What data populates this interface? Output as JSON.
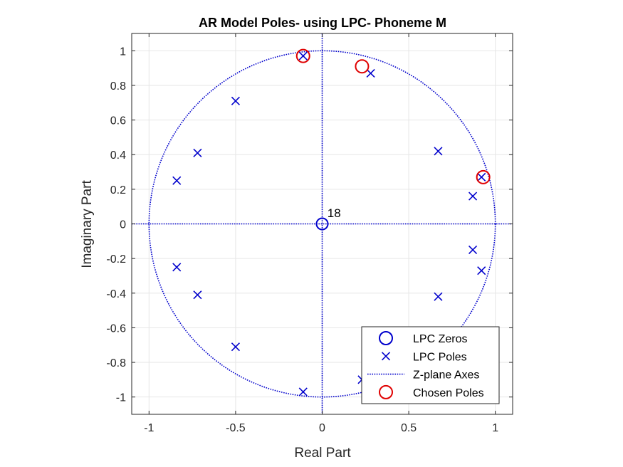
{
  "chart_data": {
    "type": "scatter",
    "title": "AR Model Poles- using LPC- Phoneme M",
    "xlabel": "Real Part",
    "ylabel": "Imaginary Part",
    "xlim": [
      -1.1,
      1.1
    ],
    "ylim": [
      -1.1,
      1.1
    ],
    "grid": true,
    "legend_position": "bottom-right",
    "x_ticks": [
      -1,
      -0.5,
      0,
      0.5,
      1
    ],
    "x_tick_labels": [
      "-1",
      "-0.5",
      "0",
      "0.5",
      "1"
    ],
    "y_ticks": [
      1,
      0.8,
      0.6,
      0.4,
      0.2,
      0,
      -0.2,
      -0.4,
      -0.6,
      -0.8,
      -1
    ],
    "y_tick_labels": [
      "1",
      "0.8",
      "0.6",
      "0.4",
      "0.2",
      "0",
      "-0.2",
      "-0.4",
      "-0.6",
      "-0.8",
      "-1"
    ],
    "series": [
      {
        "name": "LPC Zeros",
        "marker": "circle",
        "color": "#0000CC",
        "x": [
          0
        ],
        "y": [
          0
        ]
      },
      {
        "name": "LPC Poles",
        "marker": "x",
        "color": "#0000CC",
        "x": [
          -0.11,
          0.28,
          -0.5,
          -0.72,
          -0.84,
          0.67,
          0.87,
          0.92,
          0.92,
          0.87,
          0.67,
          -0.84,
          -0.72,
          -0.5,
          -0.11,
          0.23
        ],
        "y": [
          0.97,
          0.87,
          0.71,
          0.41,
          0.25,
          0.42,
          0.16,
          0.27,
          -0.27,
          -0.15,
          -0.42,
          -0.25,
          -0.41,
          -0.71,
          -0.97,
          -0.9
        ]
      },
      {
        "name": "Z-plane Axes",
        "marker": "dotted-line",
        "color": "#0000CC"
      },
      {
        "name": "Chosen Poles",
        "marker": "circle",
        "color": "#E00000",
        "x": [
          -0.11,
          0.23,
          0.93
        ],
        "y": [
          0.97,
          0.91,
          0.27
        ]
      }
    ],
    "annotations": [
      {
        "text": "18",
        "x": 0.03,
        "y": 0.04
      }
    ]
  }
}
